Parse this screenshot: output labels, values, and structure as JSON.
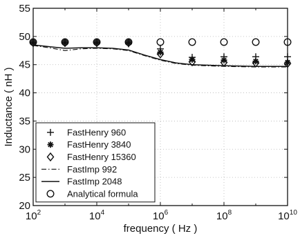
{
  "chart_data": {
    "type": "line",
    "title": "",
    "xlabel": "frequency ( Hz )",
    "ylabel": "Inductance ( nH )",
    "xscale": "log",
    "xlim": [
      100,
      10000000000
    ],
    "ylim": [
      20,
      55
    ],
    "x_ticks": [
      {
        "value": 100,
        "base": "10",
        "exp": "2"
      },
      {
        "value": 10000,
        "base": "10",
        "exp": "4"
      },
      {
        "value": 1000000,
        "base": "10",
        "exp": "6"
      },
      {
        "value": 100000000,
        "base": "10",
        "exp": "8"
      },
      {
        "value": 10000000000,
        "base": "10",
        "exp": "10"
      }
    ],
    "y_ticks": [
      "20",
      "25",
      "30",
      "35",
      "40",
      "45",
      "50",
      "55"
    ],
    "grid": true,
    "legend_position": "lower-left",
    "series": [
      {
        "name": "FastHenry 960",
        "marker": "plus",
        "line": "none",
        "x": [
          100,
          1000,
          10000,
          100000,
          1000000,
          10000000,
          100000000,
          1000000000,
          10000000000
        ],
        "y": [
          48.9,
          48.9,
          48.9,
          48.7,
          47.8,
          46.3,
          46.4,
          46.4,
          46.4
        ]
      },
      {
        "name": "FastHenry 3840",
        "marker": "asterisk",
        "line": "none",
        "x": [
          100,
          1000,
          10000,
          100000,
          1000000,
          10000000,
          100000000,
          1000000000,
          10000000000
        ],
        "y": [
          48.9,
          48.9,
          48.9,
          48.9,
          47.2,
          45.9,
          45.8,
          45.6,
          45.4
        ]
      },
      {
        "name": "FastHenry 15360",
        "marker": "diamond",
        "line": "none",
        "x": [
          100,
          1000,
          10000,
          100000,
          1000000,
          10000000,
          100000000,
          1000000000,
          10000000000
        ],
        "y": [
          48.9,
          48.9,
          48.9,
          48.9,
          46.9,
          45.5,
          45.4,
          45.3,
          45.2
        ]
      },
      {
        "name": "FastImp 992",
        "marker": "none",
        "line": "dashdot",
        "x": [
          100,
          316,
          1000,
          3162,
          10000,
          31623,
          100000,
          316228,
          1000000,
          3162278,
          10000000,
          100000000,
          1000000000,
          10000000000
        ],
        "y": [
          48.4,
          48.0,
          47.5,
          47.8,
          47.9,
          47.8,
          47.5,
          46.6,
          45.8,
          45.2,
          44.9,
          44.7,
          44.6,
          44.6
        ]
      },
      {
        "name": "FastImp 2048",
        "marker": "none",
        "line": "solid",
        "x": [
          100,
          316,
          1000,
          3162,
          10000,
          31623,
          100000,
          316228,
          1000000,
          3162278,
          10000000,
          100000000,
          1000000000,
          10000000000
        ],
        "y": [
          48.5,
          48.2,
          47.9,
          48.0,
          48.0,
          47.9,
          47.6,
          46.7,
          45.9,
          45.3,
          45.0,
          44.8,
          44.7,
          44.7
        ]
      },
      {
        "name": "Analytical formula",
        "marker": "circle",
        "line": "none",
        "x": [
          100,
          1000,
          10000,
          100000,
          1000000,
          10000000,
          100000000,
          1000000000,
          10000000000
        ],
        "y": [
          49.0,
          49.0,
          49.0,
          49.0,
          49.0,
          49.0,
          49.0,
          49.0,
          49.0
        ]
      }
    ]
  }
}
